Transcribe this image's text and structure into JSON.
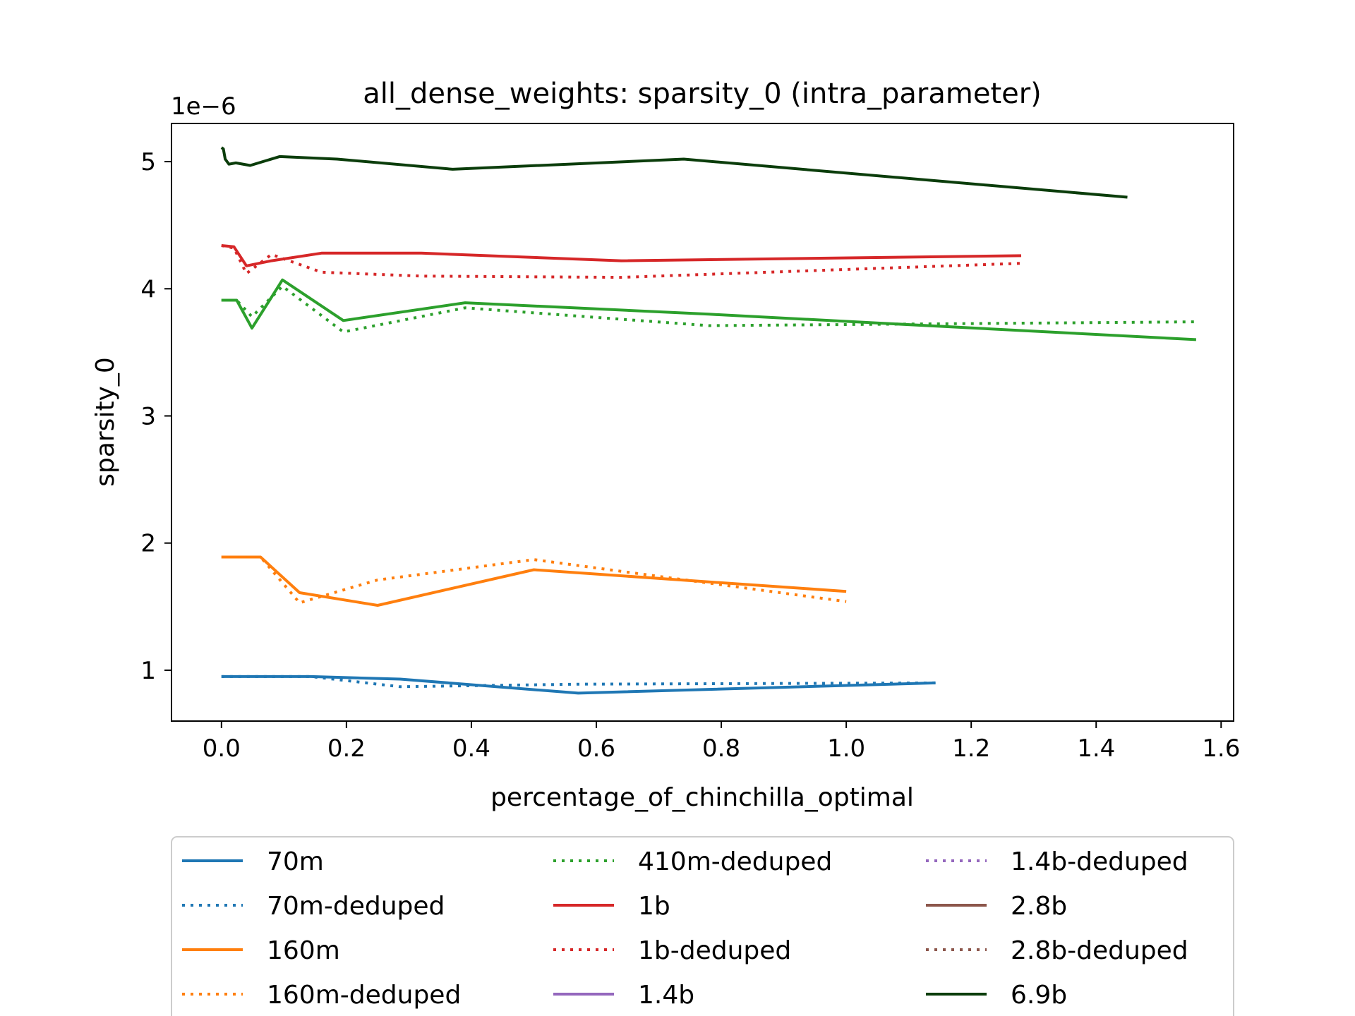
{
  "chart_data": {
    "type": "line",
    "title": "all_dense_weights: sparsity_0 (intra_parameter)",
    "xlabel": "percentage_of_chinchilla_optimal",
    "ylabel": "sparsity_0",
    "y_scale_label": "1e−6",
    "xlim": [
      -0.08,
      1.62
    ],
    "ylim": [
      0.6,
      5.3
    ],
    "x_ticks": [
      0.0,
      0.2,
      0.4,
      0.6,
      0.8,
      1.0,
      1.2,
      1.4,
      1.6
    ],
    "x_tick_labels": [
      "0.0",
      "0.2",
      "0.4",
      "0.6",
      "0.8",
      "1.0",
      "1.2",
      "1.4",
      "1.6"
    ],
    "y_ticks": [
      1,
      2,
      3,
      4,
      5
    ],
    "y_tick_labels": [
      "1",
      "2",
      "3",
      "4",
      "5"
    ],
    "grid": false,
    "legend_position": "below",
    "legend_columns": 3,
    "series": [
      {
        "name": "70m",
        "color": "#1f77b4",
        "style": "solid",
        "x": [
          0.0,
          0.143,
          0.286,
          0.571,
          1.143
        ],
        "y": [
          0.95,
          0.95,
          0.93,
          0.82,
          0.9
        ]
      },
      {
        "name": "70m-deduped",
        "color": "#1f77b4",
        "style": "dotted",
        "x": [
          0.0,
          0.143,
          0.286,
          0.571,
          1.143
        ],
        "y": [
          0.95,
          0.95,
          0.87,
          0.89,
          0.9
        ]
      },
      {
        "name": "160m",
        "color": "#ff7f0e",
        "style": "solid",
        "x": [
          0.0,
          0.0625,
          0.125,
          0.25,
          0.5,
          1.0
        ],
        "y": [
          1.89,
          1.89,
          1.61,
          1.51,
          1.79,
          1.62
        ]
      },
      {
        "name": "160m-deduped",
        "color": "#ff7f0e",
        "style": "dotted",
        "x": [
          0.0,
          0.0625,
          0.125,
          0.25,
          0.5,
          1.0
        ],
        "y": [
          1.89,
          1.89,
          1.53,
          1.71,
          1.87,
          1.54
        ]
      },
      {
        "name": "410m-deduped",
        "color": "#2ca02c",
        "style": "dotted",
        "x": [
          0.0,
          0.0244,
          0.0488,
          0.0976,
          0.195,
          0.39,
          0.78,
          1.56
        ],
        "y": [
          3.91,
          3.91,
          3.78,
          4.02,
          3.66,
          3.85,
          3.71,
          3.74
        ]
      },
      {
        "name": "1b",
        "color": "#d62728",
        "style": "solid",
        "x": [
          0.0,
          0.02,
          0.04,
          0.08,
          0.16,
          0.32,
          0.64,
          1.28
        ],
        "y": [
          4.34,
          4.33,
          4.18,
          4.22,
          4.28,
          4.28,
          4.22,
          4.26
        ]
      },
      {
        "name": "1b-deduped",
        "color": "#d62728",
        "style": "dotted",
        "x": [
          0.0,
          0.02,
          0.04,
          0.08,
          0.16,
          0.32,
          0.64,
          1.28
        ],
        "y": [
          4.34,
          4.32,
          4.12,
          4.27,
          4.13,
          4.1,
          4.09,
          4.2
        ]
      },
      {
        "name": "1.4b",
        "color": "#9467bd",
        "style": "solid",
        "x": [],
        "y": []
      },
      {
        "name": "1.4b-deduped",
        "color": "#9467bd",
        "style": "dotted",
        "x": [],
        "y": []
      },
      {
        "name": "2.8b",
        "color": "#8c564b",
        "style": "solid",
        "x": [],
        "y": []
      },
      {
        "name": "2.8b-deduped",
        "color": "#8c564b",
        "style": "dotted",
        "x": [],
        "y": []
      },
      {
        "name": "6.9b",
        "color": "#0b3d0b",
        "style": "solid",
        "x": [
          0.0,
          0.003,
          0.006,
          0.012,
          0.023,
          0.046,
          0.093,
          0.185,
          0.37,
          0.74,
          1.45
        ],
        "y": [
          5.11,
          5.1,
          5.02,
          4.98,
          4.99,
          4.97,
          5.04,
          5.02,
          4.94,
          5.02,
          4.72
        ]
      }
    ],
    "extra_series": [
      {
        "color": "#2ca02c",
        "style": "solid",
        "x": [
          0.0,
          0.0244,
          0.0488,
          0.0976,
          0.195,
          0.39,
          0.78,
          1.56
        ],
        "y": [
          3.91,
          3.91,
          3.69,
          4.07,
          3.75,
          3.89,
          3.8,
          3.6
        ]
      }
    ]
  }
}
